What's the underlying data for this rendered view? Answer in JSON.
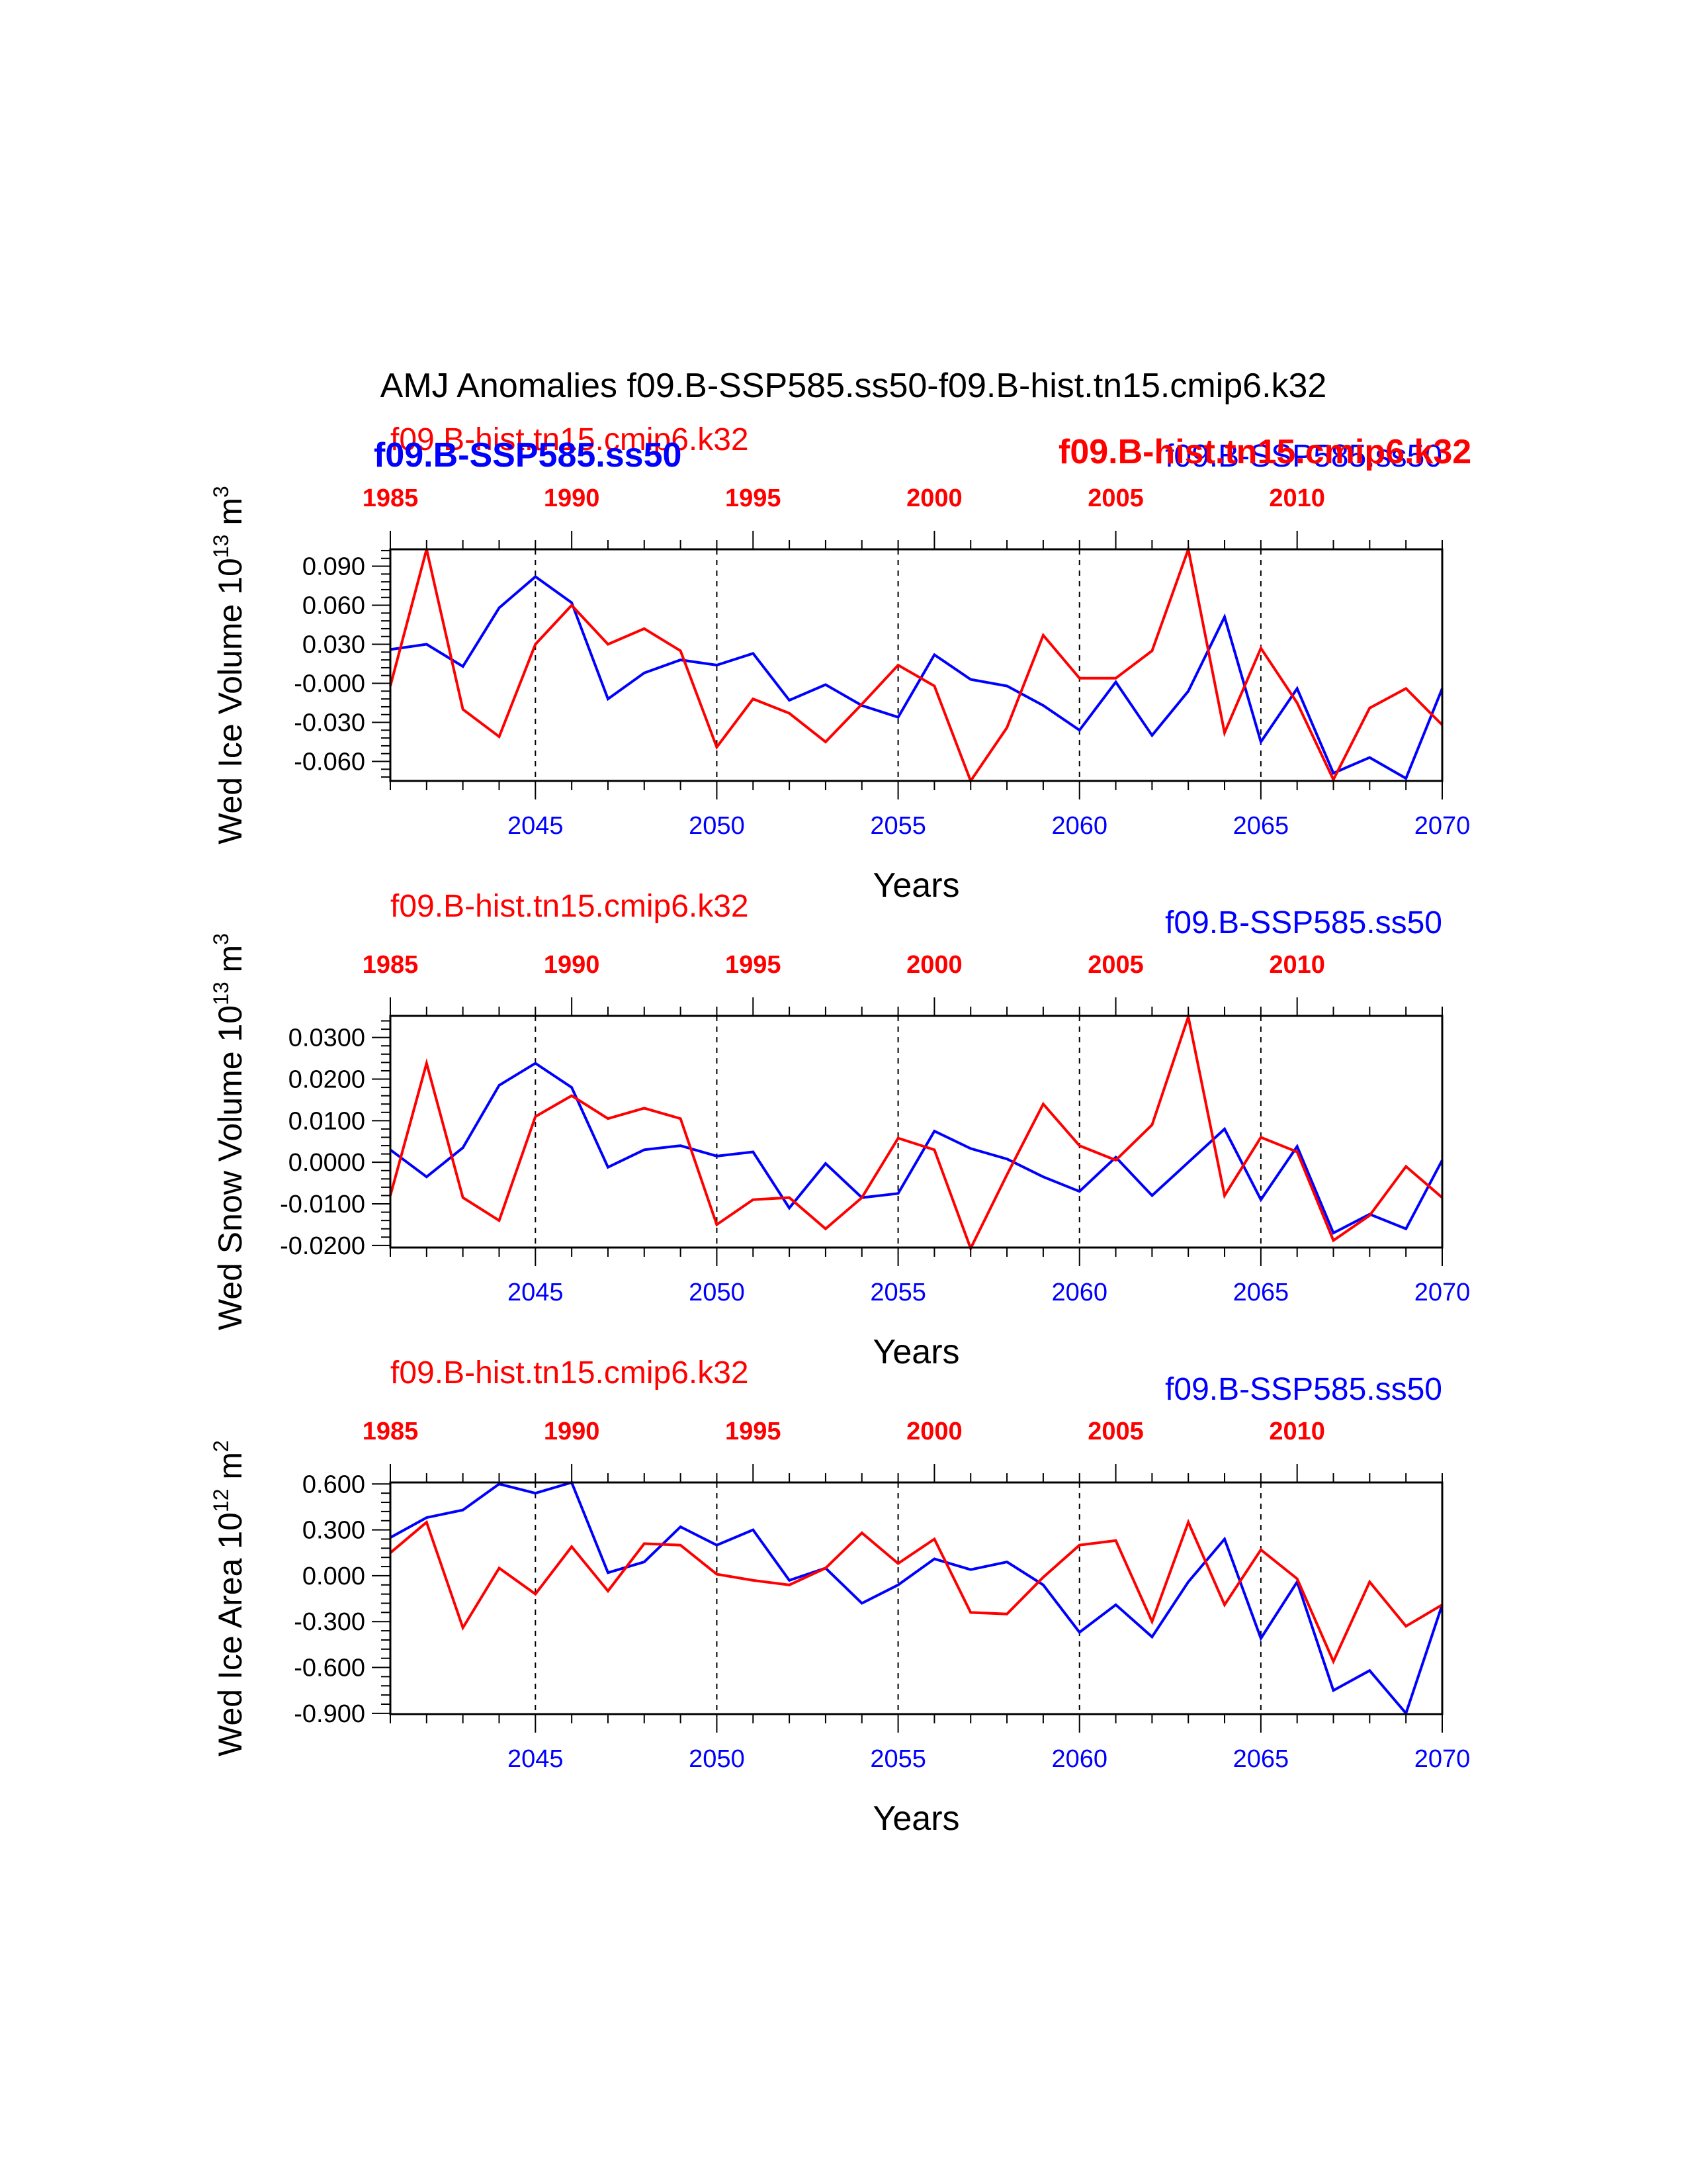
{
  "page": {
    "title": "AMJ Anomalies f09.B-SSP585.ss50-f09.B-hist.tn15.cmip6.k32"
  },
  "colors": {
    "ssp585": "#0000ff",
    "hist": "#ff0000",
    "axis": "#000000",
    "grid": "#000000"
  },
  "chart_data": [
    {
      "type": "line",
      "ylabel": "Wed Ice Volume 10",
      "ylabel_sup": "13",
      "ylabel_unit": "m",
      "ylabel_unit_sup": "3",
      "xlabel": "Years",
      "legend_top_left": "f09.B-hist.tn15.cmip6.k32",
      "legend_top_right": "f09.B-SSP585.ss50",
      "overlap_left": "f09.B-SSP585.ss50",
      "overlap_right": "f09.B-hist.tn15.cmip6.k32",
      "ylim": [
        -0.075,
        0.103
      ],
      "yticks": [
        0.09,
        0.06,
        0.03,
        0.0,
        -0.03,
        -0.06
      ],
      "ytick_labels": [
        "0.090",
        "0.060",
        "0.030",
        "-0.000",
        "-0.030",
        "-0.060"
      ],
      "ytick_decimals": 3,
      "x_bottom_range": [
        2041,
        2070
      ],
      "x_bottom_ticks": [
        2045,
        2050,
        2055,
        2060,
        2065,
        2070
      ],
      "x_top_ticks": [
        1985,
        1990,
        1995,
        2000,
        2005,
        2010
      ],
      "x_top_offset": 56,
      "grid_x": [
        2045,
        2050,
        2055,
        2060,
        2065
      ],
      "series": [
        {
          "name": "f09.B-SSP585.ss50",
          "color": "#0000ff",
          "axis": "bottom",
          "x": [
            2041,
            2042,
            2043,
            2044,
            2045,
            2046,
            2047,
            2048,
            2049,
            2050,
            2051,
            2052,
            2053,
            2054,
            2055,
            2056,
            2057,
            2058,
            2059,
            2060,
            2061,
            2062,
            2063,
            2064,
            2065,
            2066,
            2067,
            2068,
            2069,
            2070
          ],
          "values": [
            0.026,
            0.03,
            0.013,
            0.058,
            0.082,
            0.062,
            -0.012,
            0.008,
            0.018,
            0.014,
            0.023,
            -0.013,
            -0.001,
            -0.017,
            -0.026,
            0.022,
            0.003,
            -0.002,
            -0.017,
            -0.036,
            0.001,
            -0.04,
            -0.006,
            0.051,
            -0.045,
            -0.004,
            -0.069,
            -0.057,
            -0.073,
            -0.004
          ]
        },
        {
          "name": "f09.B-hist.tn15.cmip6.k32",
          "color": "#ff0000",
          "axis": "top",
          "x": [
            1985,
            1986,
            1987,
            1988,
            1989,
            1990,
            1991,
            1992,
            1993,
            1994,
            1995,
            1996,
            1997,
            1998,
            1999,
            2000,
            2001,
            2002,
            2003,
            2004,
            2005,
            2006,
            2007,
            2008,
            2009,
            2010,
            2011,
            2012,
            2013,
            2014
          ],
          "values": [
            -0.002,
            0.103,
            -0.02,
            -0.041,
            0.03,
            0.06,
            0.03,
            0.042,
            0.025,
            -0.049,
            -0.012,
            -0.023,
            -0.045,
            -0.016,
            0.014,
            -0.002,
            -0.075,
            -0.034,
            0.037,
            0.004,
            0.004,
            0.025,
            0.103,
            -0.038,
            0.027,
            -0.015,
            -0.074,
            -0.019,
            -0.004,
            -0.032
          ]
        }
      ]
    },
    {
      "type": "line",
      "ylabel": "Wed Snow Volume 10",
      "ylabel_sup": "13",
      "ylabel_unit": "m",
      "ylabel_unit_sup": "3",
      "xlabel": "Years",
      "legend_top_left": "f09.B-hist.tn15.cmip6.k32",
      "legend_top_right": "f09.B-SSP585.ss50",
      "ylim": [
        -0.0205,
        0.0352
      ],
      "yticks": [
        0.03,
        0.02,
        0.01,
        0.0,
        -0.01,
        -0.02
      ],
      "ytick_labels": [
        "0.0300",
        "0.0200",
        "0.0100",
        "0.0000",
        "-0.0100",
        "-0.0200"
      ],
      "ytick_decimals": 3,
      "x_bottom_range": [
        2041,
        2070
      ],
      "x_bottom_ticks": [
        2045,
        2050,
        2055,
        2060,
        2065,
        2070
      ],
      "x_top_ticks": [
        1985,
        1990,
        1995,
        2000,
        2005,
        2010
      ],
      "x_top_offset": 56,
      "grid_x": [
        2045,
        2050,
        2055,
        2060,
        2065
      ],
      "series": [
        {
          "name": "f09.B-SSP585.ss50",
          "color": "#0000ff",
          "axis": "bottom",
          "x": [
            2041,
            2042,
            2043,
            2044,
            2045,
            2046,
            2047,
            2048,
            2049,
            2050,
            2051,
            2052,
            2053,
            2054,
            2055,
            2056,
            2057,
            2058,
            2059,
            2060,
            2061,
            2062,
            2063,
            2064,
            2065,
            2066,
            2067,
            2068,
            2069,
            2070
          ],
          "values": [
            0.003,
            -0.0035,
            0.0035,
            0.0185,
            0.0238,
            0.018,
            -0.0012,
            0.003,
            0.004,
            0.0015,
            0.0025,
            -0.011,
            -0.0003,
            -0.0085,
            -0.0075,
            0.0075,
            0.0033,
            0.0008,
            -0.0035,
            -0.007,
            0.0012,
            -0.008,
            0.0,
            0.008,
            -0.009,
            0.0038,
            -0.017,
            -0.0125,
            -0.016,
            0.0005
          ]
        },
        {
          "name": "f09.B-hist.tn15.cmip6.k32",
          "color": "#ff0000",
          "axis": "top",
          "x": [
            1985,
            1986,
            1987,
            1988,
            1989,
            1990,
            1991,
            1992,
            1993,
            1994,
            1995,
            1996,
            1997,
            1998,
            1999,
            2000,
            2001,
            2002,
            2003,
            2004,
            2005,
            2006,
            2007,
            2008,
            2009,
            2010,
            2011,
            2012,
            2013,
            2014
          ],
          "values": [
            -0.008,
            0.0238,
            -0.0085,
            -0.014,
            0.011,
            0.016,
            0.0105,
            0.013,
            0.0105,
            -0.015,
            -0.009,
            -0.0085,
            -0.016,
            -0.0085,
            0.0058,
            0.003,
            -0.0207,
            -0.003,
            0.014,
            0.004,
            0.0005,
            0.009,
            0.035,
            -0.008,
            0.006,
            0.0025,
            -0.0188,
            -0.0128,
            -0.001,
            -0.0085
          ]
        }
      ]
    },
    {
      "type": "line",
      "ylabel": "Wed Ice Area 10",
      "ylabel_sup": "12",
      "ylabel_unit": "m",
      "ylabel_unit_sup": "2",
      "xlabel": "Years",
      "legend_top_left": "f09.B-hist.tn15.cmip6.k32",
      "legend_top_right": "f09.B-SSP585.ss50",
      "ylim": [
        -0.905,
        0.61
      ],
      "yticks": [
        0.6,
        0.3,
        0.0,
        -0.3,
        -0.6,
        -0.9
      ],
      "ytick_labels": [
        "0.600",
        "0.300",
        "0.000",
        "-0.300",
        "-0.600",
        "-0.900"
      ],
      "ytick_decimals": 2,
      "x_bottom_range": [
        2041,
        2070
      ],
      "x_bottom_ticks": [
        2045,
        2050,
        2055,
        2060,
        2065,
        2070
      ],
      "x_top_ticks": [
        1985,
        1990,
        1995,
        2000,
        2005,
        2010
      ],
      "x_top_offset": 56,
      "grid_x": [
        2045,
        2050,
        2055,
        2060,
        2065
      ],
      "series": [
        {
          "name": "f09.B-SSP585.ss50",
          "color": "#0000ff",
          "axis": "bottom",
          "x": [
            2041,
            2042,
            2043,
            2044,
            2045,
            2046,
            2047,
            2048,
            2049,
            2050,
            2051,
            2052,
            2053,
            2054,
            2055,
            2056,
            2057,
            2058,
            2059,
            2060,
            2061,
            2062,
            2063,
            2064,
            2065,
            2066,
            2067,
            2068,
            2069,
            2070
          ],
          "values": [
            0.25,
            0.38,
            0.43,
            0.6,
            0.54,
            0.61,
            0.02,
            0.09,
            0.32,
            0.2,
            0.3,
            -0.03,
            0.05,
            -0.18,
            -0.06,
            0.11,
            0.04,
            0.09,
            -0.06,
            -0.37,
            -0.19,
            -0.4,
            -0.04,
            0.24,
            -0.41,
            -0.04,
            -0.75,
            -0.62,
            -0.9,
            -0.19
          ]
        },
        {
          "name": "f09.B-hist.tn15.cmip6.k32",
          "color": "#ff0000",
          "axis": "top",
          "x": [
            1985,
            1986,
            1987,
            1988,
            1989,
            1990,
            1991,
            1992,
            1993,
            1994,
            1995,
            1996,
            1997,
            1998,
            1999,
            2000,
            2001,
            2002,
            2003,
            2004,
            2005,
            2006,
            2007,
            2008,
            2009,
            2010,
            2011,
            2012,
            2013,
            2014
          ],
          "values": [
            0.15,
            0.35,
            -0.34,
            0.05,
            -0.12,
            0.19,
            -0.1,
            0.21,
            0.2,
            0.01,
            -0.03,
            -0.06,
            0.05,
            0.28,
            0.08,
            0.24,
            -0.24,
            -0.25,
            -0.01,
            0.2,
            0.23,
            -0.3,
            0.35,
            -0.19,
            0.17,
            -0.02,
            -0.56,
            -0.04,
            -0.33,
            -0.19
          ]
        }
      ]
    }
  ]
}
